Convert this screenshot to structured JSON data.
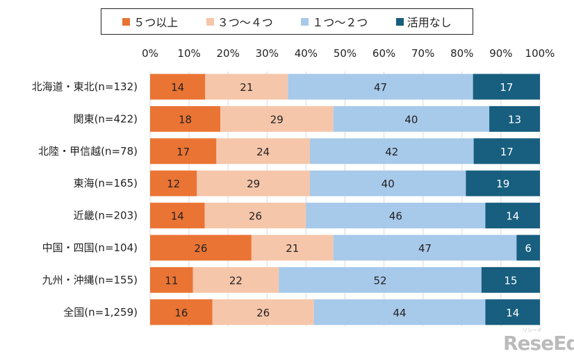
{
  "chart_data": {
    "type": "bar",
    "orientation": "horizontal",
    "stacked": true,
    "categories": [
      "北海道・東北(n=132)",
      "関東(n=422)",
      "北陸・甲信越(n=78)",
      "東海(n=165)",
      "近畿(n=203)",
      "中国・四国(n=104)",
      "九州・沖縄(n=155)",
      "全国(n=1,259)"
    ],
    "series": [
      {
        "name": "５つ以上",
        "color": "#ea7434",
        "values": [
          14,
          18,
          17,
          12,
          14,
          26,
          11,
          16
        ]
      },
      {
        "name": "３つ～４つ",
        "color": "#f6c6aa",
        "values": [
          21,
          29,
          24,
          29,
          26,
          21,
          22,
          26
        ]
      },
      {
        "name": "１つ～２つ",
        "color": "#a7c9ea",
        "values": [
          47,
          40,
          42,
          40,
          46,
          47,
          52,
          44
        ]
      },
      {
        "name": "活用なし",
        "color": "#175e7f",
        "values": [
          17,
          13,
          17,
          19,
          14,
          6,
          15,
          14
        ]
      }
    ],
    "xlim": [
      0,
      100
    ],
    "xticks": [
      "0%",
      "10%",
      "20%",
      "30%",
      "40%",
      "50%",
      "60%",
      "70%",
      "80%",
      "90%",
      "100%"
    ],
    "grid": true,
    "legend": "top"
  },
  "watermark": "ReseEd リシード"
}
